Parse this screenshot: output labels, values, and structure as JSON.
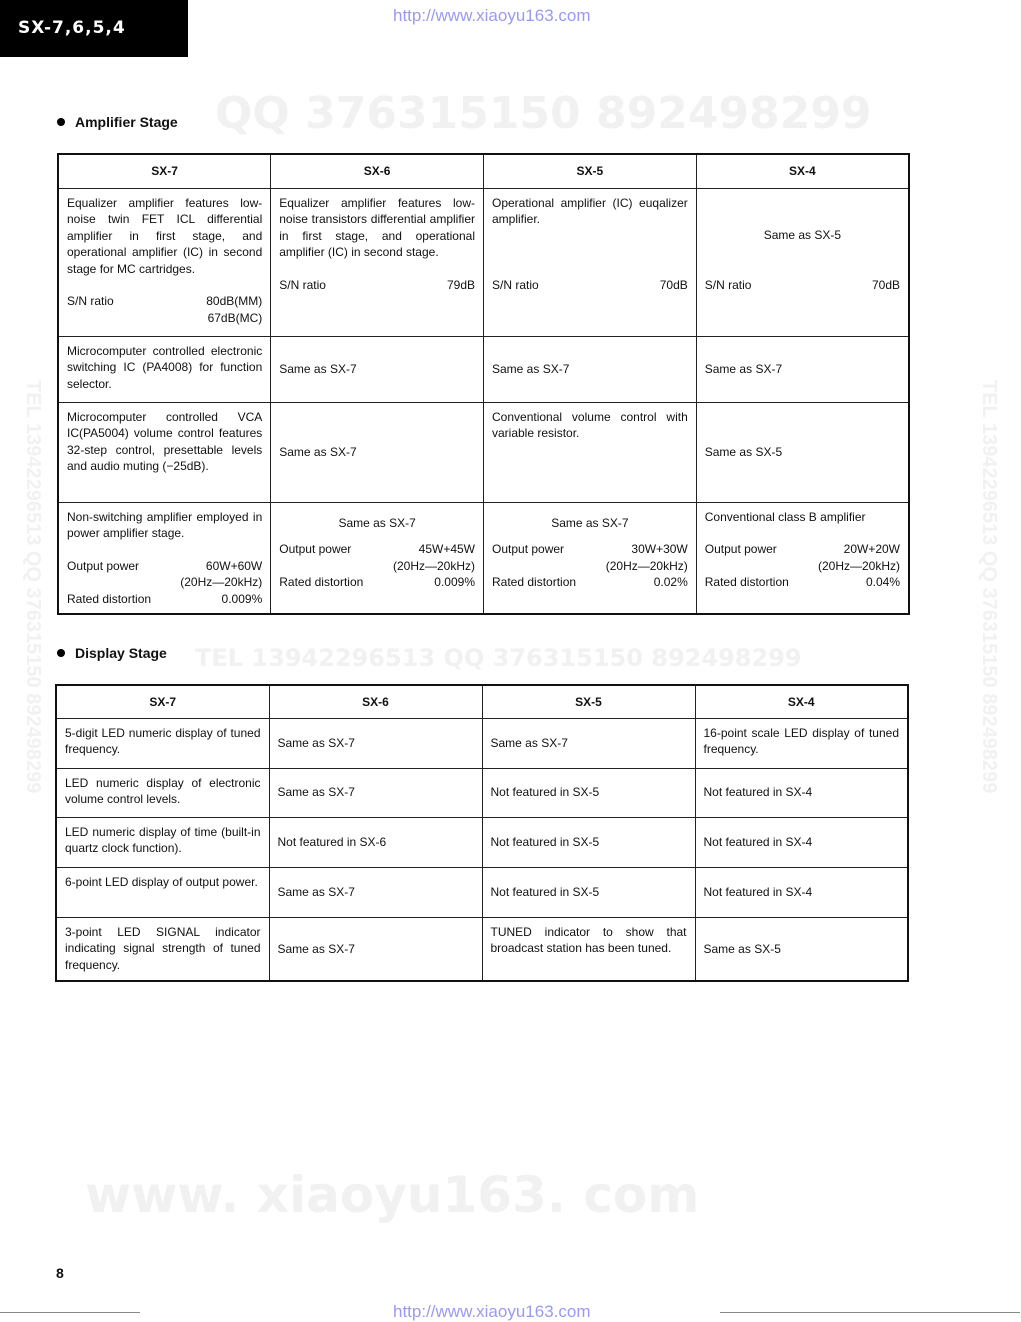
{
  "header": {
    "model_tab": "SX-7,6,5,4",
    "url_top": "http://www.xiaoyu163.com",
    "url_bottom": "http://www.xiaoyu163.com"
  },
  "watermarks": {
    "top": "QQ 376315150   892498299",
    "middle": "TEL 13942296513        QQ 376315150  892498299",
    "bottom": "www. xiaoyu163. com",
    "left_vertical": "TEL 13942296513  QQ 376315150  892498299",
    "right_vertical": "TEL 13942296513  QQ 376315150  892498299"
  },
  "amplifier": {
    "title": "Amplifier Stage",
    "columns": [
      "SX-7",
      "SX-6",
      "SX-5",
      "SX-4"
    ],
    "rows": [
      [
        {
          "text": "Equalizer amplifier features low-noise twin FET ICL differential amplifier in first stage, and operational amplifier (IC) in second stage for MC cartridges.",
          "specs": [
            {
              "label": "S/N ratio",
              "value": [
                "80dB(MM)",
                "67dB(MC)"
              ]
            }
          ]
        },
        {
          "text": "Equalizer amplifier features low-noise transistors differential amplifier in first stage, and operational amplifier (IC) in second stage.",
          "specs": [
            {
              "label": "S/N ratio",
              "value": [
                "79dB"
              ]
            }
          ]
        },
        {
          "text": "Operational amplifier (IC) euqalizer amplifier.",
          "specs": [
            {
              "label": "S/N ratio",
              "value": [
                "70dB"
              ]
            }
          ],
          "spacer": true
        },
        {
          "text": "Same as SX-5",
          "center_text": true,
          "specs": [
            {
              "label": "S/N ratio",
              "value": [
                "70dB"
              ]
            }
          ]
        }
      ],
      [
        {
          "text": "Microcomputer controlled electronic switching IC (PA4008) for function selector."
        },
        {
          "text": "Same as SX-7",
          "center": true
        },
        {
          "text": "Same as SX-7",
          "center": true
        },
        {
          "text": "Same as SX-7",
          "center": true
        }
      ],
      [
        {
          "text": "Microcomputer controlled VCA IC(PA5004) volume control features 32-step control, presettable levels and audio muting (−25dB)."
        },
        {
          "text": "Same as SX-7",
          "center": true
        },
        {
          "text": "Conventional volume control with variable resistor."
        },
        {
          "text": "Same as SX-5",
          "center": true
        }
      ],
      [
        {
          "text": "Non-switching amplifier employed in power amplifier stage.",
          "specs": [
            {
              "label": "Output power",
              "value": [
                "60W+60W",
                "(20Hz—20kHz)"
              ]
            },
            {
              "label": "Rated distortion",
              "value": [
                "0.009%"
              ]
            }
          ]
        },
        {
          "text": "Same as SX-7",
          "center_text": true,
          "specs": [
            {
              "label": "Output power",
              "value": [
                "45W+45W",
                "(20Hz—20kHz)"
              ]
            },
            {
              "label": "Rated distortion",
              "value": [
                "0.009%"
              ]
            }
          ]
        },
        {
          "text": "Same as SX-7",
          "center_text": true,
          "specs": [
            {
              "label": "Output power",
              "value": [
                "30W+30W",
                "(20Hz—20kHz)"
              ]
            },
            {
              "label": "Rated distortion",
              "value": [
                "0.02%"
              ]
            }
          ]
        },
        {
          "text": "Conventional class B amplifier",
          "specs": [
            {
              "label": "Output power",
              "value": [
                "20W+20W",
                "(20Hz—20kHz)"
              ]
            },
            {
              "label": "Rated distortion",
              "value": [
                "0.04%"
              ]
            }
          ]
        }
      ]
    ]
  },
  "display": {
    "title": "Display Stage",
    "columns": [
      "SX-7",
      "SX-6",
      "SX-5",
      "SX-4"
    ],
    "rows": [
      [
        {
          "text": "5-digit LED numeric display of tuned frequency."
        },
        {
          "text": "Same as SX-7",
          "center": true
        },
        {
          "text": "Same as SX-7",
          "center": true
        },
        {
          "text": "16-point scale LED display of tuned frequency."
        }
      ],
      [
        {
          "text": "LED numeric display of electronic volume control levels."
        },
        {
          "text": "Same as SX-7",
          "center": true
        },
        {
          "text": "Not featured in SX-5",
          "center": true
        },
        {
          "text": "Not featured in SX-4",
          "center": true
        }
      ],
      [
        {
          "text": "LED numeric display of time (built-in quartz clock function)."
        },
        {
          "text": "Not featured in SX-6",
          "center": true
        },
        {
          "text": "Not featured in SX-5",
          "center": true
        },
        {
          "text": "Not featured in SX-4",
          "center": true
        }
      ],
      [
        {
          "text": "6-point LED display of output power."
        },
        {
          "text": "Same as SX-7",
          "center": true
        },
        {
          "text": "Not featured in SX-5",
          "center": true
        },
        {
          "text": "Not featured in SX-4",
          "center": true
        }
      ],
      [
        {
          "text": "3-point LED SIGNAL indicator indicating signal strength of tuned frequency."
        },
        {
          "text": "Same as SX-7",
          "center": true
        },
        {
          "text": "TUNED indicator to show that broadcast station has been tuned."
        },
        {
          "text": "Same as SX-5",
          "center": true
        }
      ]
    ]
  },
  "footer": {
    "page_number": "8"
  }
}
